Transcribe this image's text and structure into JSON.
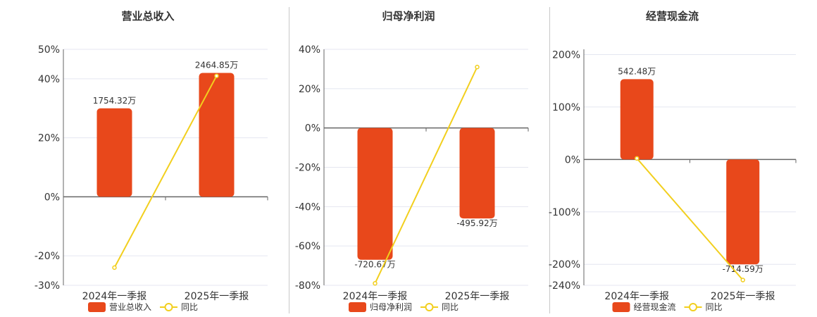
{
  "colors": {
    "bar": "#E8481B",
    "line": "#F2CF1E",
    "axis": "#666666",
    "grid": "#E4E6F0",
    "text": "#333333"
  },
  "legend_line_label": "同比",
  "chart_data": [
    {
      "type": "bar",
      "title": "营业总收入",
      "categories": [
        "2024年一季报",
        "2025年一季报"
      ],
      "series": [
        {
          "name": "营业总收入",
          "kind": "bar",
          "values": [
            30,
            42
          ],
          "labels": [
            "1754.32万",
            "2464.85万"
          ]
        },
        {
          "name": "同比",
          "kind": "line",
          "values": [
            -24,
            41
          ]
        }
      ],
      "yticks": [
        "50%",
        "40%",
        "20%",
        "0%",
        "-20%",
        "-30%"
      ],
      "ytick_values": [
        50,
        40,
        20,
        0,
        -20,
        -30
      ],
      "ylim": [
        -30,
        50
      ],
      "grid": true,
      "legend": "bottom-center"
    },
    {
      "type": "bar",
      "title": "归母净利润",
      "categories": [
        "2024年一季报",
        "2025年一季报"
      ],
      "series": [
        {
          "name": "归母净利润",
          "kind": "bar",
          "values": [
            -67,
            -46
          ],
          "labels": [
            "-720.67万",
            "-495.92万"
          ]
        },
        {
          "name": "同比",
          "kind": "line",
          "values": [
            -79,
            31
          ]
        }
      ],
      "yticks": [
        "40%",
        "20%",
        "0%",
        "-20%",
        "-40%",
        "-60%",
        "-80%"
      ],
      "ytick_values": [
        40,
        20,
        0,
        -20,
        -40,
        -60,
        -80
      ],
      "ylim": [
        -80,
        40
      ],
      "grid": true,
      "legend": "bottom-center"
    },
    {
      "type": "bar",
      "title": "经营现金流",
      "categories": [
        "2024年一季报",
        "2025年一季报"
      ],
      "series": [
        {
          "name": "经营现金流",
          "kind": "bar",
          "values": [
            153,
            -200
          ],
          "labels": [
            "542.48万",
            "-714.59万"
          ]
        },
        {
          "name": "同比",
          "kind": "line",
          "values": [
            2,
            -230
          ]
        }
      ],
      "yticks": [
        "200%",
        "100%",
        "0%",
        "-100%",
        "-200%",
        "-240%"
      ],
      "ytick_values": [
        200,
        100,
        0,
        -100,
        -200,
        -240
      ],
      "ylim": [
        -240,
        210
      ],
      "grid": true,
      "legend": "bottom-center"
    }
  ]
}
